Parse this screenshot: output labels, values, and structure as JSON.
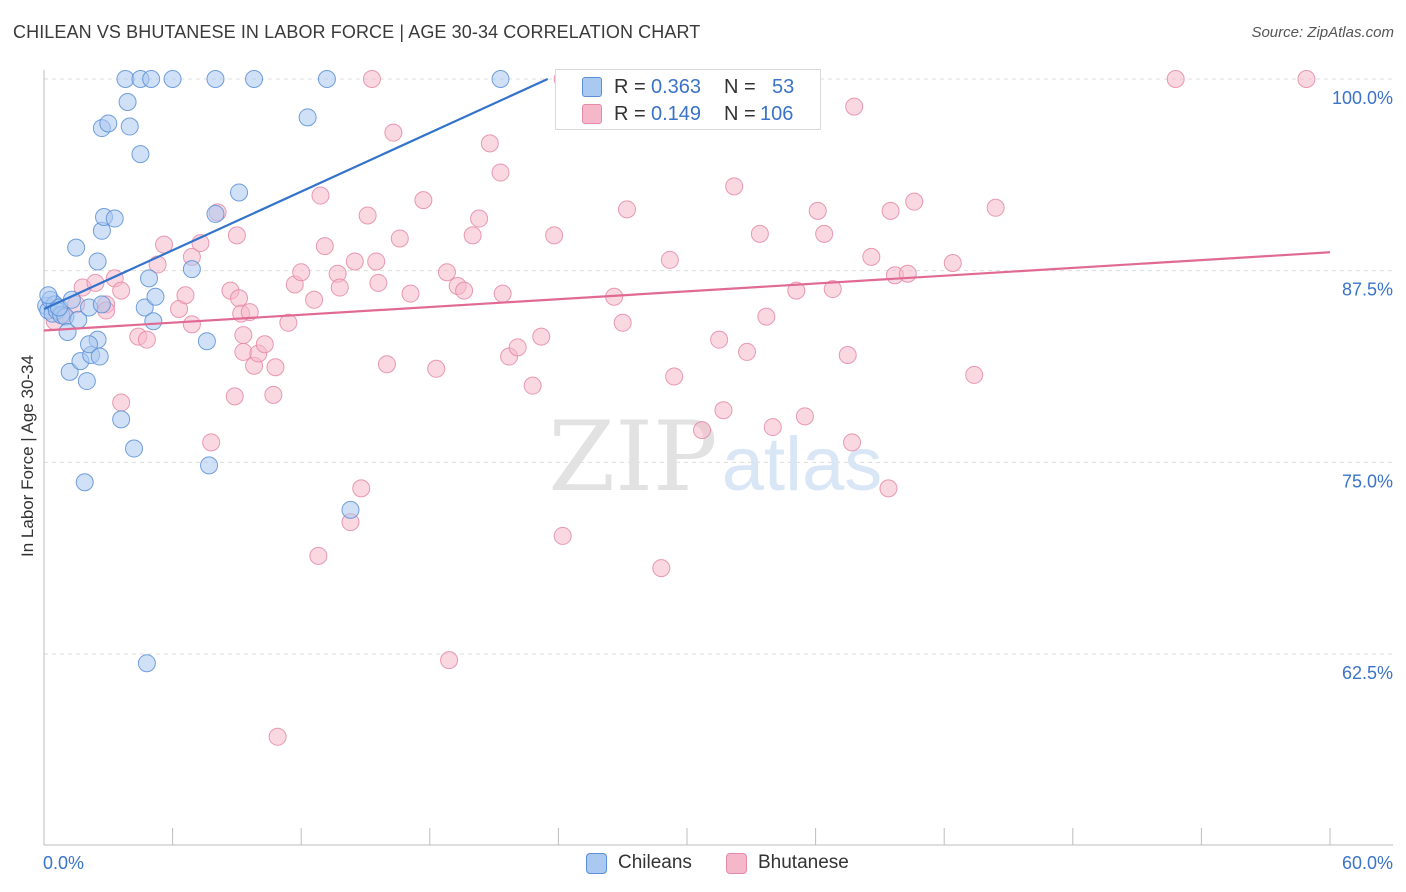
{
  "title": "CHILEAN VS BHUTANESE IN LABOR FORCE | AGE 30-34 CORRELATION CHART",
  "source": "Source: ZipAtlas.com",
  "watermark": {
    "zip": "ZIP",
    "atlas": "atlas"
  },
  "legend": {
    "rows": [
      {
        "r_label": "R = ",
        "r_value": "0.363",
        "n_label": "N = ",
        "n_value": "53"
      },
      {
        "r_label": "R = ",
        "r_value": "0.149",
        "n_label": "N = ",
        "n_value": "106"
      }
    ]
  },
  "chart_data": {
    "type": "scatter",
    "title": "CHILEAN VS BHUTANESE IN LABOR FORCE | AGE 30-34 CORRELATION CHART",
    "xlabel": "",
    "ylabel": "In Labor Force | Age 30-34",
    "xlim": [
      0,
      60
    ],
    "ylim": [
      52.5,
      101
    ],
    "x_tick_labels": [
      "0.0%",
      "60.0%"
    ],
    "y_ticks": [
      {
        "value": 100,
        "label": "100.0%"
      },
      {
        "value": 87.5,
        "label": "87.5%"
      },
      {
        "value": 75,
        "label": "75.0%"
      },
      {
        "value": 62.5,
        "label": "62.5%"
      }
    ],
    "colors": {
      "chileans_fill": "#a9c9f1",
      "chileans_stroke": "#5b8fd6",
      "chileans_line": "#3373cc",
      "bhutanese_fill": "#f5b8ca",
      "bhutanese_stroke": "#e48aa6",
      "bhutanese_line": "#e06a94",
      "value_text": "#3a73c8",
      "grid": "#dcdcdc"
    },
    "series": [
      {
        "name": "Chileans",
        "r": 0.363,
        "n": 53,
        "trend": {
          "x": [
            0,
            23.5
          ],
          "y": [
            85.0,
            100.0
          ]
        },
        "points": [
          [
            0.1,
            85.2
          ],
          [
            0.2,
            84.9
          ],
          [
            0.3,
            85.6
          ],
          [
            0.4,
            84.7
          ],
          [
            0.5,
            85.3
          ],
          [
            0.6,
            84.9
          ],
          [
            0.8,
            84.6
          ],
          [
            1.0,
            84.5
          ],
          [
            0.7,
            85.1
          ],
          [
            0.2,
            85.9
          ],
          [
            1.1,
            83.5
          ],
          [
            1.3,
            85.6
          ],
          [
            1.6,
            84.3
          ],
          [
            1.2,
            80.9
          ],
          [
            1.5,
            89.0
          ],
          [
            2.1,
            85.1
          ],
          [
            2.7,
            85.3
          ],
          [
            2.5,
            83.0
          ],
          [
            1.7,
            81.6
          ],
          [
            2.2,
            82.0
          ],
          [
            2.1,
            82.7
          ],
          [
            2.6,
            81.9
          ],
          [
            2.0,
            80.3
          ],
          [
            2.5,
            88.1
          ],
          [
            2.7,
            90.1
          ],
          [
            2.8,
            91.0
          ],
          [
            3.3,
            90.9
          ],
          [
            2.7,
            96.8
          ],
          [
            3.0,
            97.1
          ],
          [
            3.9,
            98.5
          ],
          [
            4.0,
            96.9
          ],
          [
            4.5,
            95.1
          ],
          [
            4.9,
            87.0
          ],
          [
            4.7,
            85.1
          ],
          [
            5.1,
            84.2
          ],
          [
            5.2,
            85.8
          ],
          [
            4.2,
            75.9
          ],
          [
            3.6,
            77.8
          ],
          [
            1.9,
            73.7
          ],
          [
            3.8,
            100.0
          ],
          [
            4.5,
            100.0
          ],
          [
            5.0,
            100.0
          ],
          [
            6.0,
            100.0
          ],
          [
            6.9,
            87.6
          ],
          [
            7.6,
            82.9
          ],
          [
            7.7,
            74.8
          ],
          [
            8.0,
            91.2
          ],
          [
            8.0,
            100.0
          ],
          [
            9.1,
            92.6
          ],
          [
            9.8,
            100.0
          ],
          [
            12.3,
            97.5
          ],
          [
            13.2,
            100.0
          ],
          [
            21.3,
            100.0
          ],
          [
            14.3,
            71.9
          ],
          [
            4.8,
            61.9
          ]
        ]
      },
      {
        "name": "Bhutanese",
        "r": 0.149,
        "n": 106,
        "trend": {
          "x": [
            0,
            60
          ],
          "y": [
            83.6,
            88.7
          ]
        },
        "points": [
          [
            0.5,
            84.2
          ],
          [
            0.9,
            84.6
          ],
          [
            1.5,
            85.3
          ],
          [
            1.8,
            86.4
          ],
          [
            2.4,
            86.7
          ],
          [
            2.9,
            85.3
          ],
          [
            3.3,
            87.0
          ],
          [
            3.6,
            86.2
          ],
          [
            2.9,
            84.9
          ],
          [
            3.6,
            78.9
          ],
          [
            4.4,
            83.2
          ],
          [
            4.8,
            83.0
          ],
          [
            5.3,
            87.9
          ],
          [
            5.6,
            89.2
          ],
          [
            6.3,
            85.0
          ],
          [
            6.6,
            85.9
          ],
          [
            6.9,
            84.0
          ],
          [
            6.9,
            88.4
          ],
          [
            7.3,
            89.3
          ],
          [
            7.8,
            76.3
          ],
          [
            8.1,
            91.3
          ],
          [
            8.7,
            86.2
          ],
          [
            8.9,
            79.3
          ],
          [
            9.0,
            89.8
          ],
          [
            9.1,
            85.7
          ],
          [
            9.2,
            84.7
          ],
          [
            9.3,
            83.3
          ],
          [
            9.3,
            82.2
          ],
          [
            9.8,
            81.3
          ],
          [
            10.0,
            82.1
          ],
          [
            10.3,
            82.7
          ],
          [
            10.7,
            79.4
          ],
          [
            10.8,
            81.2
          ],
          [
            11.4,
            84.1
          ],
          [
            11.7,
            86.6
          ],
          [
            12.0,
            87.4
          ],
          [
            12.6,
            85.6
          ],
          [
            12.9,
            92.4
          ],
          [
            13.1,
            89.1
          ],
          [
            13.7,
            87.3
          ],
          [
            13.8,
            86.4
          ],
          [
            14.3,
            71.1
          ],
          [
            14.5,
            88.1
          ],
          [
            14.8,
            73.3
          ],
          [
            15.1,
            91.1
          ],
          [
            15.5,
            88.1
          ],
          [
            15.6,
            86.7
          ],
          [
            16.0,
            81.4
          ],
          [
            16.3,
            96.5
          ],
          [
            16.6,
            89.6
          ],
          [
            17.1,
            86.0
          ],
          [
            17.7,
            92.1
          ],
          [
            18.3,
            81.1
          ],
          [
            18.8,
            87.4
          ],
          [
            19.3,
            86.5
          ],
          [
            19.6,
            86.2
          ],
          [
            20.0,
            89.8
          ],
          [
            20.3,
            90.9
          ],
          [
            20.8,
            95.8
          ],
          [
            21.3,
            93.9
          ],
          [
            21.4,
            86.0
          ],
          [
            21.7,
            81.9
          ],
          [
            22.1,
            82.5
          ],
          [
            22.8,
            80.0
          ],
          [
            23.2,
            83.2
          ],
          [
            23.8,
            89.8
          ],
          [
            24.2,
            70.2
          ],
          [
            26.6,
            85.8
          ],
          [
            27.0,
            84.1
          ],
          [
            27.2,
            91.5
          ],
          [
            29.2,
            88.2
          ],
          [
            29.4,
            80.6
          ],
          [
            30.7,
            77.1
          ],
          [
            31.5,
            83.0
          ],
          [
            31.7,
            78.4
          ],
          [
            32.2,
            93.0
          ],
          [
            32.8,
            82.2
          ],
          [
            33.4,
            89.9
          ],
          [
            33.7,
            84.5
          ],
          [
            34.0,
            77.3
          ],
          [
            35.1,
            86.2
          ],
          [
            35.5,
            78.0
          ],
          [
            36.1,
            91.4
          ],
          [
            36.4,
            89.9
          ],
          [
            36.8,
            86.3
          ],
          [
            37.5,
            82.0
          ],
          [
            37.7,
            76.3
          ],
          [
            38.6,
            88.4
          ],
          [
            39.4,
            73.3
          ],
          [
            39.7,
            87.2
          ],
          [
            40.3,
            87.3
          ],
          [
            39.5,
            91.4
          ],
          [
            40.6,
            92.0
          ],
          [
            42.4,
            88.0
          ],
          [
            43.4,
            80.7
          ],
          [
            44.4,
            91.6
          ],
          [
            52.8,
            100.0
          ],
          [
            58.9,
            100.0
          ],
          [
            37.8,
            98.2
          ],
          [
            15.3,
            100.0
          ],
          [
            24.2,
            100.0
          ],
          [
            12.8,
            68.9
          ],
          [
            18.9,
            62.1
          ],
          [
            10.9,
            57.1
          ],
          [
            28.8,
            68.1
          ],
          [
            9.6,
            84.8
          ]
        ]
      }
    ]
  },
  "bottom_legend": {
    "series_a": "Chileans",
    "series_b": "Bhutanese"
  }
}
